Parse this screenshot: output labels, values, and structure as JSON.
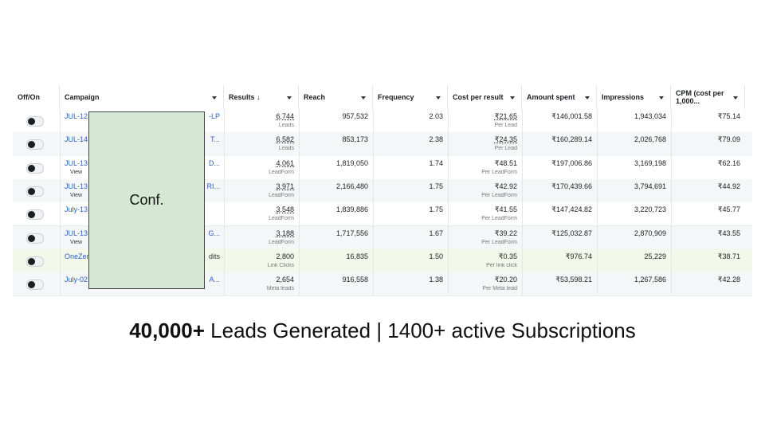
{
  "table": {
    "headers": [
      "Off/On",
      "Campaign",
      "Results ↓",
      "Reach",
      "Frequency",
      "Cost per result",
      "Amount spent",
      "Impressions",
      "CPM (cost per 1,000..."
    ],
    "rows": [
      {
        "campaign": "JUL-12",
        "campaign_end": "-LP",
        "results": "6,744",
        "results_label": "Leads",
        "reach": "957,532",
        "frequency": "2.03",
        "cost": "₹21.65",
        "cost_label": "Per Lead",
        "spent": "₹146,001.58",
        "impressions": "1,943,034",
        "cpm": "₹75.14"
      },
      {
        "campaign": "JUL-14",
        "campaign_end": "T...",
        "results": "6,582",
        "results_label": "Leads",
        "reach": "853,173",
        "frequency": "2.38",
        "cost": "₹24.35",
        "cost_label": "Per Lead",
        "spent": "₹160,289.14",
        "impressions": "2,026,768",
        "cpm": "₹79.09"
      },
      {
        "campaign": "JUL-13",
        "view": "View",
        "campaign_end": "D...",
        "results": "4,061",
        "results_label": "LeadForm",
        "reach": "1,819,050",
        "frequency": "1.74",
        "cost": "₹48.51",
        "cost_label": "Per LeadForm",
        "spent": "₹197,006.86",
        "impressions": "3,169,198",
        "cpm": "₹62.16"
      },
      {
        "campaign": "JUL-13",
        "view": "View",
        "campaign_end": "RI...",
        "results": "3,971",
        "results_label": "LeadForm",
        "reach": "2,166,480",
        "frequency": "1.75",
        "cost": "₹42.92",
        "cost_label": "Per LeadForm",
        "spent": "₹170,439.66",
        "impressions": "3,794,691",
        "cpm": "₹44.92"
      },
      {
        "campaign": "July-13",
        "results": "3,548",
        "results_label": "LeadForm",
        "reach": "1,839,886",
        "frequency": "1.75",
        "cost": "₹41.55",
        "cost_label": "Per LeadForm",
        "spent": "₹147,424.82",
        "impressions": "3,220,723",
        "cpm": "₹45.77"
      },
      {
        "campaign": "JUL-13",
        "view": "View",
        "campaign_end": "G...",
        "results": "3,188",
        "results_label": "LeadForm",
        "reach": "1,717,556",
        "frequency": "1.67",
        "cost": "₹39.22",
        "cost_label": "Per LeadForm",
        "spent": "₹125,032.87",
        "impressions": "2,870,909",
        "cpm": "₹43.55"
      },
      {
        "campaign": "OneZer",
        "campaign_end": "dits",
        "results": "2,800",
        "results_label": "Link Clicks",
        "reach": "16,835",
        "frequency": "1.50",
        "cost": "₹0.35",
        "cost_label": "Per link click",
        "spent": "₹976.74",
        "impressions": "25,229",
        "cpm": "₹38.71",
        "background": "#f2f8ea"
      },
      {
        "campaign": "July-02",
        "campaign_end": "A...",
        "results": "2,654",
        "results_label": "Meta leads",
        "reach": "916,558",
        "frequency": "1.38",
        "cost": "₹20.20",
        "cost_label": "Per Meta lead",
        "spent": "₹53,598.21",
        "impressions": "1,267,586",
        "cpm": "₹42.28"
      }
    ]
  },
  "overlay": "Conf.",
  "caption": {
    "bold": "40,000+",
    "text": " Leads Generated | 1400+ active Subscriptions"
  }
}
